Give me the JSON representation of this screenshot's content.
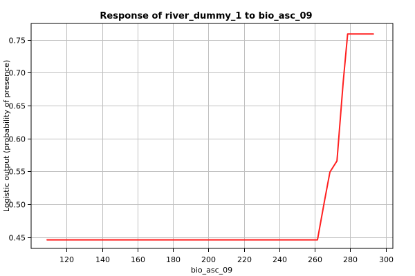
{
  "chart_data": {
    "type": "line",
    "title": "Response of river_dummy_1 to bio_asc_09",
    "xlabel": "bio_asc_09",
    "ylabel": "Logistic output (probability of presence)",
    "xlim": [
      100,
      304
    ],
    "ylim": [
      0.433,
      0.775
    ],
    "x_ticks": [
      120,
      140,
      160,
      180,
      200,
      220,
      240,
      260,
      280,
      300
    ],
    "y_ticks": [
      0.45,
      0.5,
      0.55,
      0.6,
      0.65,
      0.7,
      0.75
    ],
    "y_tick_labels": [
      "0.45",
      "0.50",
      "0.55",
      "0.60",
      "0.65",
      "0.70",
      "0.75"
    ],
    "grid": true,
    "series": [
      {
        "color": "#ff2020",
        "x": [
          109,
          261.5,
          265.5,
          268.5,
          272.5,
          276,
          278.5,
          293
        ],
        "y": [
          0.446,
          0.446,
          0.506,
          0.549,
          0.566,
          0.686,
          0.759,
          0.759
        ]
      }
    ]
  }
}
